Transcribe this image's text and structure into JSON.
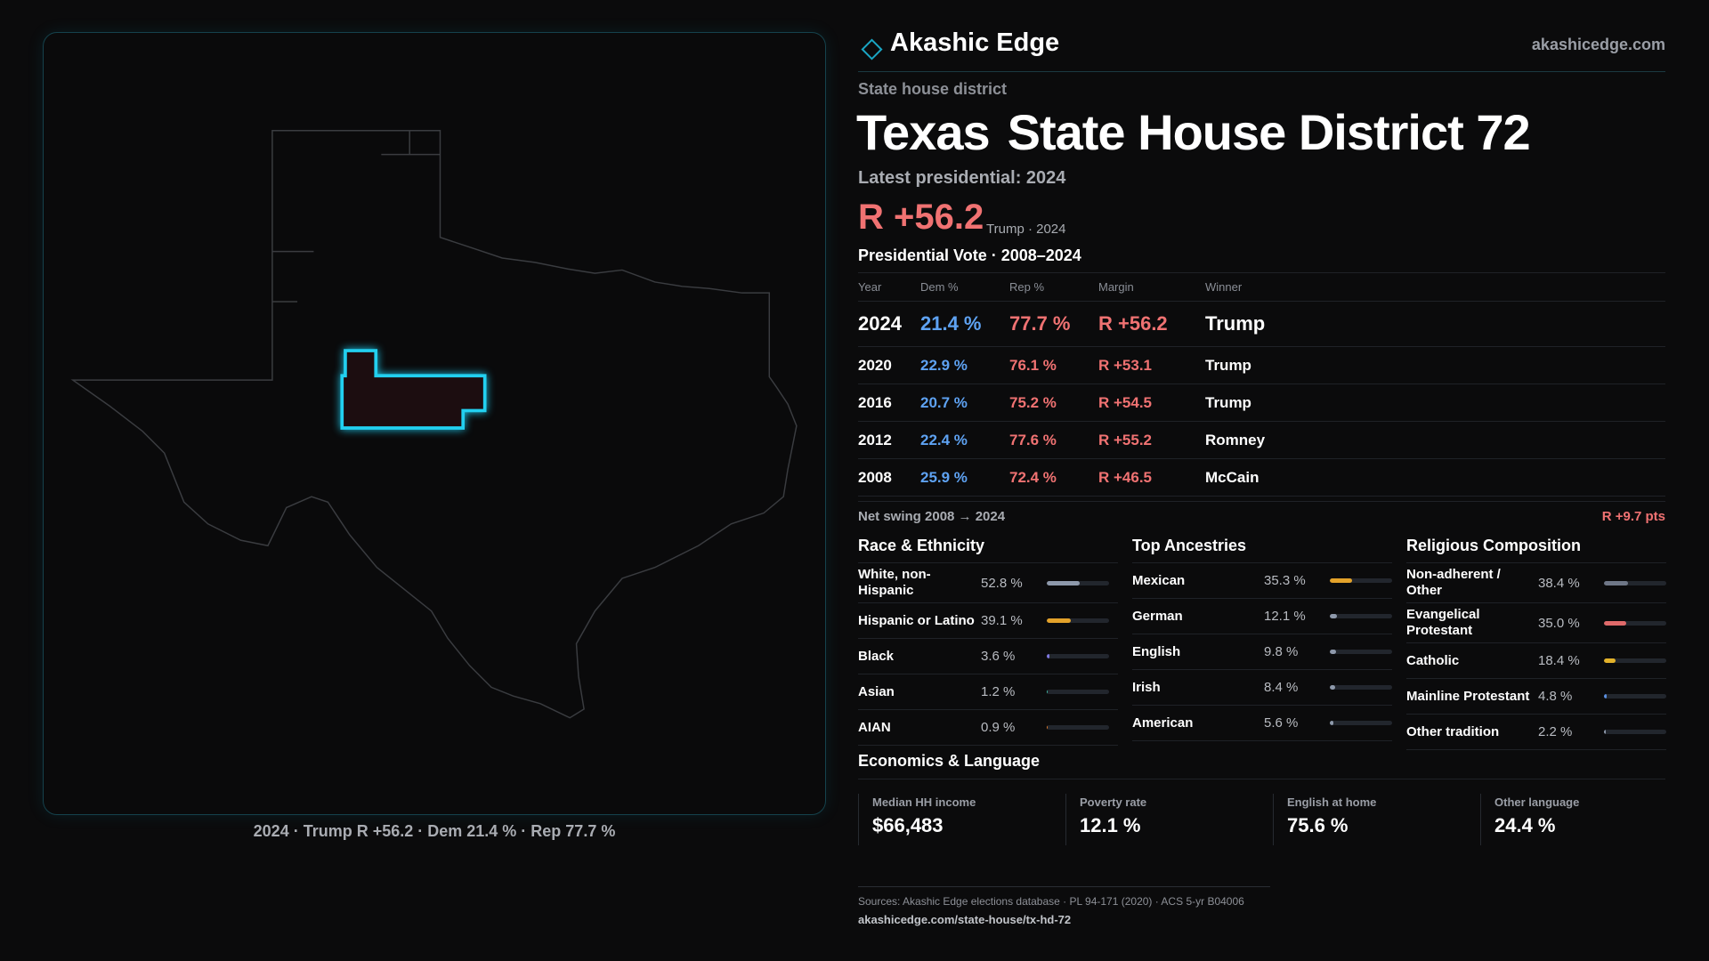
{
  "header": {
    "brand": "Akashic Edge",
    "site": "akashicedge.com"
  },
  "district": {
    "kind": "State house district",
    "state": "Texas",
    "name": "State House District 72",
    "latest": "Latest presidential: 2024",
    "margin": "R +56.2",
    "margin_note": "Trump · 2024"
  },
  "map": {
    "caption": "2024 · Trump R +56.2 · Dem 21.4 % · Rep 77.7 %"
  },
  "vote_table": {
    "title": "Presidential Vote · 2008–2024",
    "columns": [
      "Year",
      "Dem %",
      "Rep %",
      "Margin",
      "Winner"
    ],
    "rows": [
      [
        "2024",
        "21.4 %",
        "77.7 %",
        "R +56.2",
        "Trump"
      ],
      [
        "2020",
        "22.9 %",
        "76.1 %",
        "R +53.1",
        "Trump"
      ],
      [
        "2016",
        "20.7 %",
        "75.2 %",
        "R +54.5",
        "Trump"
      ],
      [
        "2012",
        "22.4 %",
        "77.6 %",
        "R +55.2",
        "Romney"
      ],
      [
        "2008",
        "25.9 %",
        "72.4 %",
        "R +46.5",
        "McCain"
      ]
    ]
  },
  "swing": {
    "label": "Net swing 2008 → 2024",
    "value": "R +9.7 pts"
  },
  "race": {
    "title": "Race & Ethnicity",
    "items": [
      {
        "label": "White, non-Hispanic",
        "value": 52.8,
        "value_label": "52.8 %",
        "color": "#8e99ab"
      },
      {
        "label": "Hispanic or Latino",
        "value": 39.1,
        "value_label": "39.1 %",
        "color": "#e3a22a"
      },
      {
        "label": "Black",
        "value": 3.6,
        "value_label": "3.6 %",
        "color": "#7f78e0"
      },
      {
        "label": "Asian",
        "value": 1.2,
        "value_label": "1.2 %",
        "color": "#3fb3a0"
      },
      {
        "label": "AIAN",
        "value": 0.9,
        "value_label": "0.9 %",
        "color": "#d9782c"
      }
    ]
  },
  "ancestry": {
    "title": "Top Ancestries",
    "items": [
      {
        "label": "Mexican",
        "value": 35.3,
        "value_label": "35.3 %",
        "color": "#e3a22a"
      },
      {
        "label": "German",
        "value": 12.1,
        "value_label": "12.1 %",
        "color": "#8e99ab"
      },
      {
        "label": "English",
        "value": 9.8,
        "value_label": "9.8 %",
        "color": "#8e99ab"
      },
      {
        "label": "Irish",
        "value": 8.4,
        "value_label": "8.4 %",
        "color": "#8e99ab"
      },
      {
        "label": "American",
        "value": 5.6,
        "value_label": "5.6 %",
        "color": "#8e99ab"
      }
    ]
  },
  "religion": {
    "title": "Religious Composition",
    "items": [
      {
        "label": "Non-adherent / Other",
        "value": 38.4,
        "value_label": "38.4 %",
        "color": "#6f7787"
      },
      {
        "label": "Evangelical Protestant",
        "value": 35.0,
        "value_label": "35.0 %",
        "color": "#e06a6a"
      },
      {
        "label": "Catholic",
        "value": 18.4,
        "value_label": "18.4 %",
        "color": "#e3b22a"
      },
      {
        "label": "Mainline Protestant",
        "value": 4.8,
        "value_label": "4.8 %",
        "color": "#5b8fe0"
      },
      {
        "label": "Other tradition",
        "value": 2.2,
        "value_label": "2.2 %",
        "color": "#8e99ab"
      }
    ]
  },
  "economics": {
    "title": "Economics & Language",
    "cards": [
      {
        "label": "Median HH income",
        "value": "$66,483"
      },
      {
        "label": "Poverty rate",
        "value": "12.1 %"
      },
      {
        "label": "English at home",
        "value": "75.6 %"
      },
      {
        "label": "Other language",
        "value": "24.4 %"
      }
    ]
  },
  "footer": {
    "sources": "Sources: Akashic Edge elections database · PL 94-171 (2020) · ACS 5-yr B04006",
    "url": "akashicedge.com/state-house/tx-hd-72"
  }
}
